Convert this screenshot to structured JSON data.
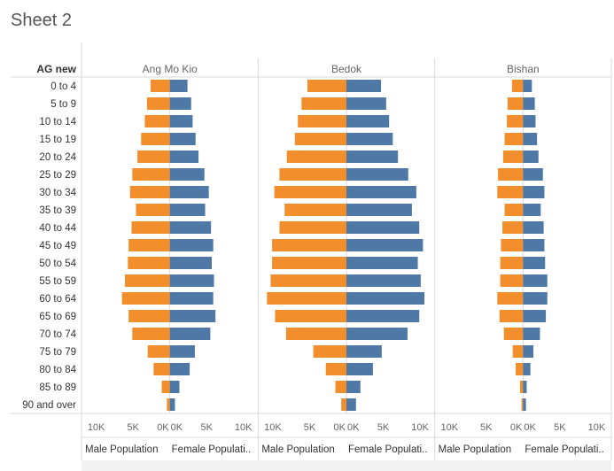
{
  "sheet": {
    "title": "Sheet 2"
  },
  "colors": {
    "male": "#F28E2B",
    "female": "#4E79A7",
    "grid": "#d9d9d9",
    "text": "#333333",
    "muted": "#666666",
    "footer_bar": "#f2f2f2"
  },
  "chart_data": {
    "type": "bar",
    "subtype": "population-pyramid",
    "row_header": "AG new",
    "categories": [
      "0 to 4",
      "5 to 9",
      "10 to 14",
      "15 to 19",
      "20 to 24",
      "25 to 29",
      "30 to 34",
      "35 to 39",
      "40 to 44",
      "45 to 49",
      "50 to 54",
      "55 to 59",
      "60 to 64",
      "65 to 69",
      "70 to 74",
      "75 to 79",
      "80 to 84",
      "85 to 89",
      "90 and over"
    ],
    "axis_ticks": [
      "10K",
      "5K",
      "0K"
    ],
    "axis_ticks_right": [
      "0K",
      "5K",
      "10K"
    ],
    "axis_range": [
      0,
      12000
    ],
    "axis_labels": {
      "male": "Male Population",
      "female": "Female Populati.."
    },
    "panels": [
      {
        "name": "Ang Mo Kio",
        "series": [
          {
            "name": "Male Population",
            "values": [
              2600,
              3100,
              3400,
              3900,
              4400,
              5100,
              5400,
              4600,
              5200,
              5600,
              5700,
              6100,
              6500,
              5600,
              5100,
              3000,
              2200,
              1100,
              400
            ]
          },
          {
            "name": "Female Population",
            "values": [
              2400,
              2900,
              3100,
              3500,
              3900,
              4700,
              5300,
              4800,
              5600,
              5900,
              5700,
              6000,
              5900,
              6200,
              5500,
              3400,
              2700,
              1300,
              700
            ]
          }
        ]
      },
      {
        "name": "Bedok",
        "series": [
          {
            "name": "Male Population",
            "values": [
              5300,
              6100,
              6600,
              7000,
              8100,
              9100,
              9800,
              8400,
              9100,
              10100,
              10100,
              10300,
              10800,
              9700,
              8200,
              4500,
              2800,
              1500,
              700
            ]
          },
          {
            "name": "Female Population",
            "values": [
              4700,
              5400,
              5800,
              6300,
              7000,
              8400,
              9500,
              8900,
              9900,
              10400,
              9700,
              10100,
              10600,
              9900,
              8300,
              4800,
              3600,
              1900,
              1300
            ]
          }
        ]
      },
      {
        "name": "Bishan",
        "series": [
          {
            "name": "Male Population",
            "values": [
              1500,
              2100,
              2200,
              2500,
              2700,
              3400,
              3500,
              2500,
              2800,
              3000,
              3100,
              3100,
              3500,
              3200,
              2600,
              1400,
              1000,
              400,
              200
            ]
          },
          {
            "name": "Female Population",
            "values": [
              1200,
              1600,
              1700,
              1900,
              2100,
              2700,
              2900,
              2400,
              2800,
              2900,
              3000,
              3300,
              3300,
              3100,
              2300,
              1400,
              1000,
              500,
              400
            ]
          }
        ]
      }
    ]
  }
}
